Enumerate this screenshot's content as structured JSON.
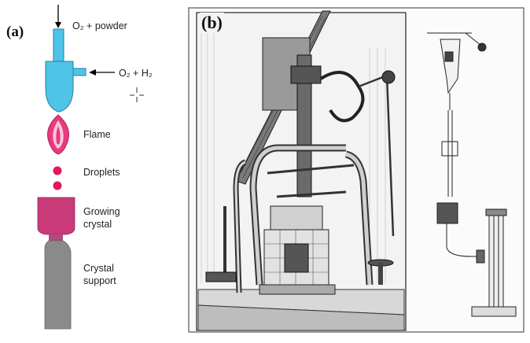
{
  "panel_a": {
    "letter": "(a)",
    "labels": {
      "o2_powder": "O₂ + powder",
      "o2_h2": "O₂ + H₂",
      "flame": "Flame",
      "droplets": "Droplets",
      "growing_crystal_1": "Growing",
      "growing_crystal_2": "crystal",
      "crystal_support_1": "Crystal",
      "crystal_support_2": "support"
    },
    "colors": {
      "burner": "#4fc3e8",
      "flame_outer": "#e83a7c",
      "flame_inner": "#f7c6dc",
      "droplet": "#e0185f",
      "crystal": "#c93a78",
      "support": "#8a8a8a"
    }
  },
  "panel_b": {
    "letter": "(b)"
  }
}
